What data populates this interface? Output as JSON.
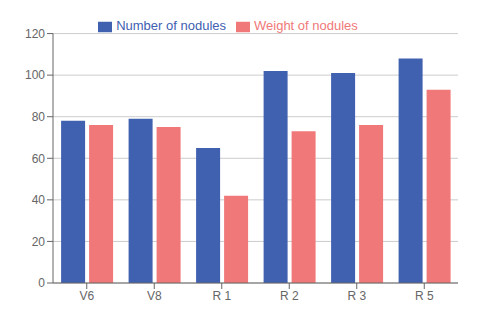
{
  "chart_data": {
    "type": "bar",
    "categories": [
      "V6",
      "V8",
      "R 1",
      "R 2",
      "R 3",
      "R 5"
    ],
    "series": [
      {
        "name": "Number of nodules",
        "color": "#4060B0",
        "values": [
          78,
          79,
          65,
          102,
          101,
          108
        ]
      },
      {
        "name": "Weight of nodules",
        "color": "#F07878",
        "values": [
          76,
          75,
          42,
          73,
          76,
          93
        ]
      }
    ],
    "ylim": [
      0,
      120
    ],
    "yticks": [
      0,
      20,
      40,
      60,
      80,
      100,
      120
    ],
    "grid": true,
    "legend": "top"
  }
}
